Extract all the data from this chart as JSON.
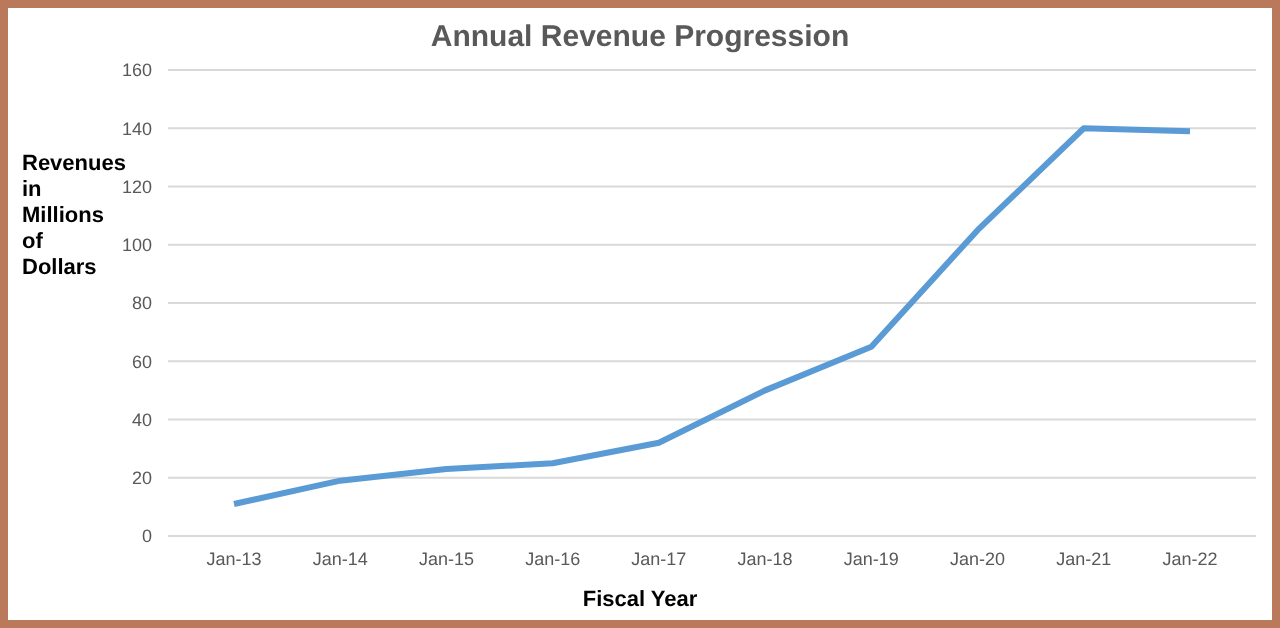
{
  "chart_data": {
    "type": "line",
    "title": "Annual Revenue Progression",
    "xlabel": "Fiscal Year",
    "ylabel": "Revenues in Millions of Dollars",
    "categories": [
      "Jan-13",
      "Jan-14",
      "Jan-15",
      "Jan-16",
      "Jan-17",
      "Jan-18",
      "Jan-19",
      "Jan-20",
      "Jan-21",
      "Jan-22"
    ],
    "series": [
      {
        "color": "#5b9bd5",
        "values": [
          11,
          19,
          23,
          25,
          32,
          50,
          65,
          105,
          140,
          139
        ]
      }
    ],
    "ylim": [
      0,
      160
    ],
    "yticks": [
      0,
      20,
      40,
      60,
      80,
      100,
      120,
      140,
      160
    ],
    "grid": "y",
    "marker": "none",
    "line_style": "solid"
  }
}
